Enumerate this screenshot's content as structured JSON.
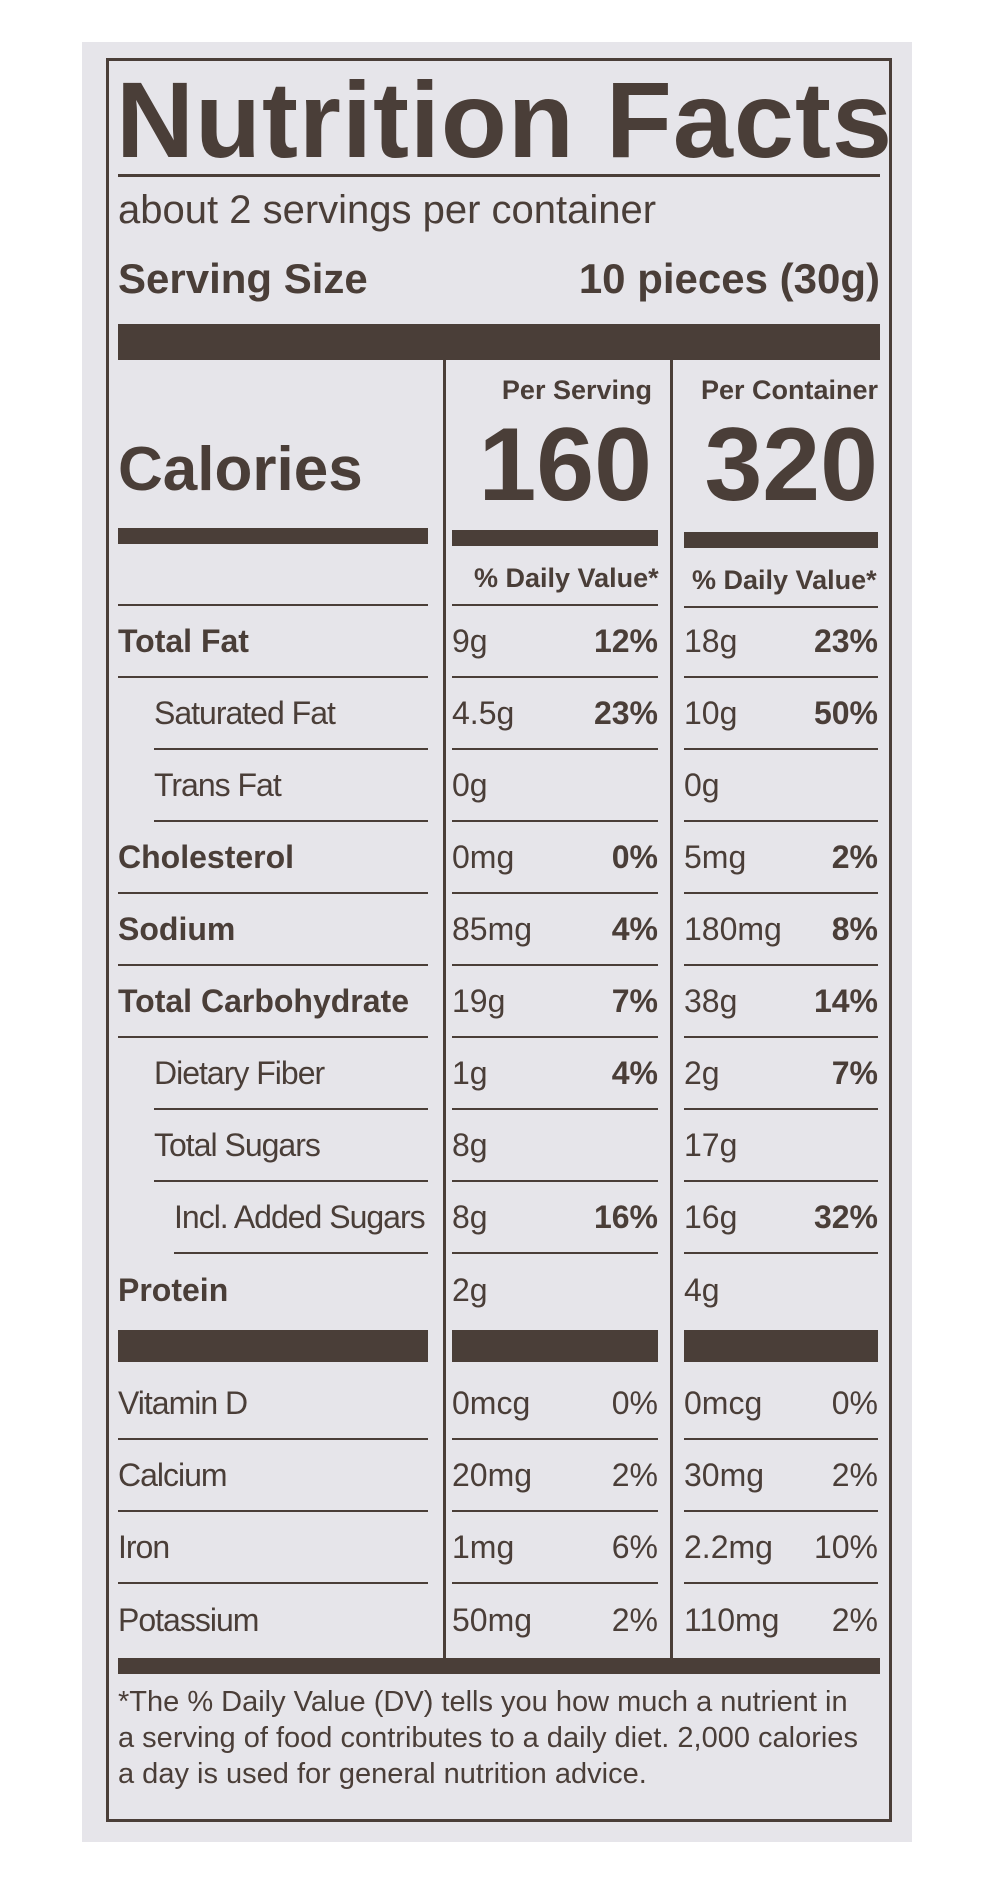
{
  "label": {
    "title": "Nutrition Facts",
    "servings_per_container": "about 2 servings per container",
    "serving_size_label": "Serving Size",
    "serving_size_value": "10 pieces (30g)",
    "per_serving_label": "Per Serving",
    "per_container_label": "Per Container",
    "calories_label": "Calories",
    "calories_per_serving": "160",
    "calories_per_container": "320",
    "dv_header": "% Daily Value*",
    "nutrients": [
      {
        "name": "Total Fat",
        "bold": true,
        "indent": 0,
        "s_amt": "9g",
        "s_dv": "12%",
        "c_amt": "18g",
        "c_dv": "23%"
      },
      {
        "name": "Saturated Fat",
        "bold": false,
        "indent": 1,
        "s_amt": "4.5g",
        "s_dv": "23%",
        "c_amt": "10g",
        "c_dv": "50%"
      },
      {
        "name": "Trans Fat",
        "bold": false,
        "indent": 1,
        "s_amt": "0g",
        "s_dv": "",
        "c_amt": "0g",
        "c_dv": ""
      },
      {
        "name": "Cholesterol",
        "bold": true,
        "indent": 0,
        "s_amt": "0mg",
        "s_dv": "0%",
        "c_amt": "5mg",
        "c_dv": "2%"
      },
      {
        "name": "Sodium",
        "bold": true,
        "indent": 0,
        "s_amt": "85mg",
        "s_dv": "4%",
        "c_amt": "180mg",
        "c_dv": "8%"
      },
      {
        "name": "Total Carbohydrate",
        "bold": true,
        "indent": 0,
        "s_amt": "19g",
        "s_dv": "7%",
        "c_amt": "38g",
        "c_dv": "14%"
      },
      {
        "name": "Dietary Fiber",
        "bold": false,
        "indent": 1,
        "s_amt": "1g",
        "s_dv": "4%",
        "c_amt": "2g",
        "c_dv": "7%"
      },
      {
        "name": "Total Sugars",
        "bold": false,
        "indent": 1,
        "s_amt": "8g",
        "s_dv": "",
        "c_amt": "17g",
        "c_dv": ""
      },
      {
        "name": "Incl. Added Sugars",
        "bold": false,
        "indent": 2,
        "s_amt": "8g",
        "s_dv": "16%",
        "c_amt": "16g",
        "c_dv": "32%"
      },
      {
        "name": "Protein",
        "bold": true,
        "indent": 0,
        "s_amt": "2g",
        "s_dv": "",
        "c_amt": "4g",
        "c_dv": ""
      }
    ],
    "vitamins": [
      {
        "name": "Vitamin D",
        "s_amt": "0mcg",
        "s_dv": "0%",
        "c_amt": "0mcg",
        "c_dv": "0%"
      },
      {
        "name": "Calcium",
        "s_amt": "20mg",
        "s_dv": "2%",
        "c_amt": "30mg",
        "c_dv": "2%"
      },
      {
        "name": "Iron",
        "s_amt": "1mg",
        "s_dv": "6%",
        "c_amt": "2.2mg",
        "c_dv": "10%"
      },
      {
        "name": "Potassium",
        "s_amt": "50mg",
        "s_dv": "2%",
        "c_amt": "110mg",
        "c_dv": "2%"
      }
    ],
    "footnote": "*The % Daily Value (DV) tells you how much a nutrient in a serving of food contributes to a daily diet. 2,000 calories a day is used for general nutrition advice.",
    "ink_color": "#4a3e38",
    "background_color": "#e6e5ea"
  }
}
